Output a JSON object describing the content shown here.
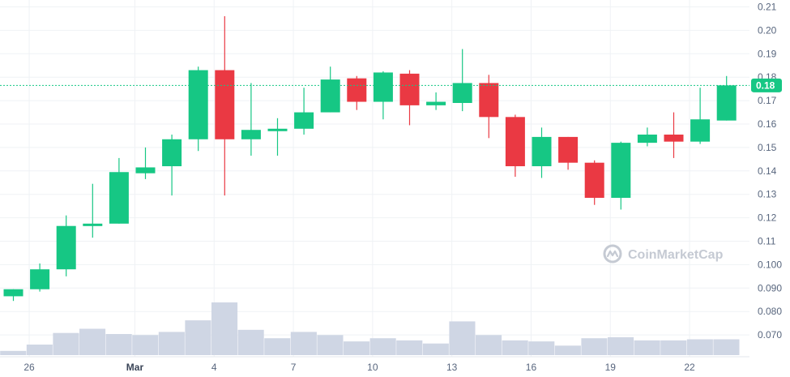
{
  "chart_data": {
    "type": "candlestick",
    "y_range": [
      0.06,
      0.21
    ],
    "grid": true,
    "y_ticks": [
      "0.21",
      "0.20",
      "0.19",
      "0.18",
      "0.17",
      "0.16",
      "0.15",
      "0.14",
      "0.13",
      "0.12",
      "0.11",
      "0.100",
      "0.090",
      "0.080",
      "0.070"
    ],
    "x_ticks": [
      {
        "label": "26",
        "index": 0.6,
        "bold": false
      },
      {
        "label": "Mar",
        "index": 4.6,
        "bold": true
      },
      {
        "label": "4",
        "index": 7.6,
        "bold": false
      },
      {
        "label": "7",
        "index": 10.6,
        "bold": false
      },
      {
        "label": "10",
        "index": 13.6,
        "bold": false
      },
      {
        "label": "13",
        "index": 16.6,
        "bold": false
      },
      {
        "label": "16",
        "index": 19.6,
        "bold": false
      },
      {
        "label": "19",
        "index": 22.6,
        "bold": false
      },
      {
        "label": "22",
        "index": 25.6,
        "bold": false
      }
    ],
    "current_price": {
      "label": "0.18",
      "value": 0.1765
    },
    "colors": {
      "up": "#16c784",
      "down": "#ea3943",
      "volume": "#cfd6e4",
      "grid": "#eff2f5",
      "price_line": "#16c784"
    },
    "candles": [
      {
        "open": 0.0865,
        "high": 0.0895,
        "low": 0.0845,
        "close": 0.0895
      },
      {
        "open": 0.0895,
        "high": 0.1005,
        "low": 0.0885,
        "close": 0.098
      },
      {
        "open": 0.098,
        "high": 0.121,
        "low": 0.095,
        "close": 0.1165
      },
      {
        "open": 0.1165,
        "high": 0.1345,
        "low": 0.1115,
        "close": 0.1175
      },
      {
        "open": 0.1175,
        "high": 0.1455,
        "low": 0.1175,
        "close": 0.1395
      },
      {
        "open": 0.139,
        "high": 0.15,
        "low": 0.1365,
        "close": 0.1415
      },
      {
        "open": 0.142,
        "high": 0.1555,
        "low": 0.1295,
        "close": 0.1535
      },
      {
        "open": 0.1535,
        "high": 0.1845,
        "low": 0.1485,
        "close": 0.183
      },
      {
        "open": 0.183,
        "high": 0.206,
        "low": 0.1295,
        "close": 0.1535
      },
      {
        "open": 0.1535,
        "high": 0.1775,
        "low": 0.1465,
        "close": 0.1575
      },
      {
        "open": 0.1575,
        "high": 0.1625,
        "low": 0.1465,
        "close": 0.158
      },
      {
        "open": 0.158,
        "high": 0.1755,
        "low": 0.1555,
        "close": 0.165
      },
      {
        "open": 0.165,
        "high": 0.1845,
        "low": 0.165,
        "close": 0.179
      },
      {
        "open": 0.1795,
        "high": 0.1805,
        "low": 0.166,
        "close": 0.1695
      },
      {
        "open": 0.1695,
        "high": 0.1825,
        "low": 0.162,
        "close": 0.182
      },
      {
        "open": 0.1815,
        "high": 0.183,
        "low": 0.1595,
        "close": 0.168
      },
      {
        "open": 0.168,
        "high": 0.1735,
        "low": 0.166,
        "close": 0.1695
      },
      {
        "open": 0.169,
        "high": 0.192,
        "low": 0.1655,
        "close": 0.1775
      },
      {
        "open": 0.1775,
        "high": 0.181,
        "low": 0.154,
        "close": 0.163
      },
      {
        "open": 0.163,
        "high": 0.164,
        "low": 0.1375,
        "close": 0.142
      },
      {
        "open": 0.142,
        "high": 0.1585,
        "low": 0.137,
        "close": 0.1545
      },
      {
        "open": 0.1545,
        "high": 0.1545,
        "low": 0.1405,
        "close": 0.1435
      },
      {
        "open": 0.1435,
        "high": 0.1445,
        "low": 0.1255,
        "close": 0.1285
      },
      {
        "open": 0.1285,
        "high": 0.1525,
        "low": 0.1235,
        "close": 0.152
      },
      {
        "open": 0.152,
        "high": 0.1585,
        "low": 0.1505,
        "close": 0.1555
      },
      {
        "open": 0.1555,
        "high": 0.165,
        "low": 0.1455,
        "close": 0.1525
      },
      {
        "open": 0.1525,
        "high": 0.1755,
        "low": 0.1515,
        "close": 0.162
      },
      {
        "open": 0.1615,
        "high": 0.1805,
        "low": 0.1615,
        "close": 0.1765
      }
    ],
    "volumes": [
      0.2,
      0.5,
      1.05,
      1.25,
      1.0,
      0.95,
      1.1,
      1.65,
      2.5,
      1.2,
      0.8,
      1.1,
      0.95,
      0.65,
      0.8,
      0.7,
      0.55,
      1.6,
      0.95,
      0.7,
      0.65,
      0.45,
      0.8,
      0.85,
      0.7,
      0.7,
      0.75,
      0.75
    ]
  },
  "watermark": {
    "text": "CoinMarketCap"
  }
}
